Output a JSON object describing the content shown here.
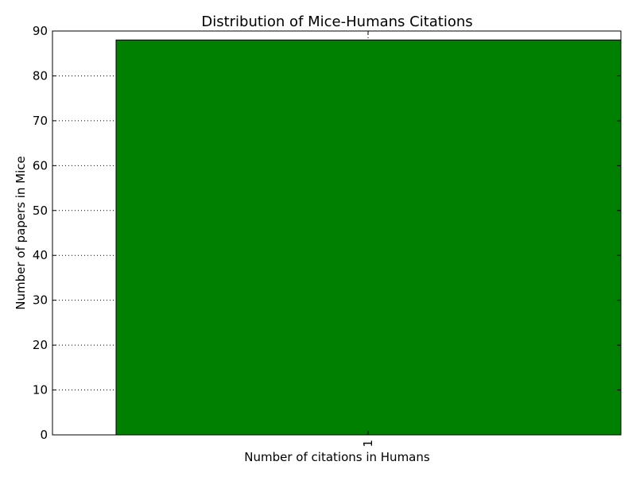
{
  "chart_data": {
    "type": "bar",
    "title": "Distribution of Mice-Humans Citations",
    "xlabel": "Number of citations in Humans",
    "ylabel": "Number of papers in Mice",
    "categories": [
      "1"
    ],
    "values": [
      88
    ],
    "ylim": [
      0,
      90
    ],
    "yticks": [
      "0",
      "10",
      "20",
      "30",
      "40",
      "50",
      "60",
      "70",
      "80",
      "90"
    ],
    "grid": true,
    "bar_color": "#008000",
    "edge_color": "#000000"
  }
}
